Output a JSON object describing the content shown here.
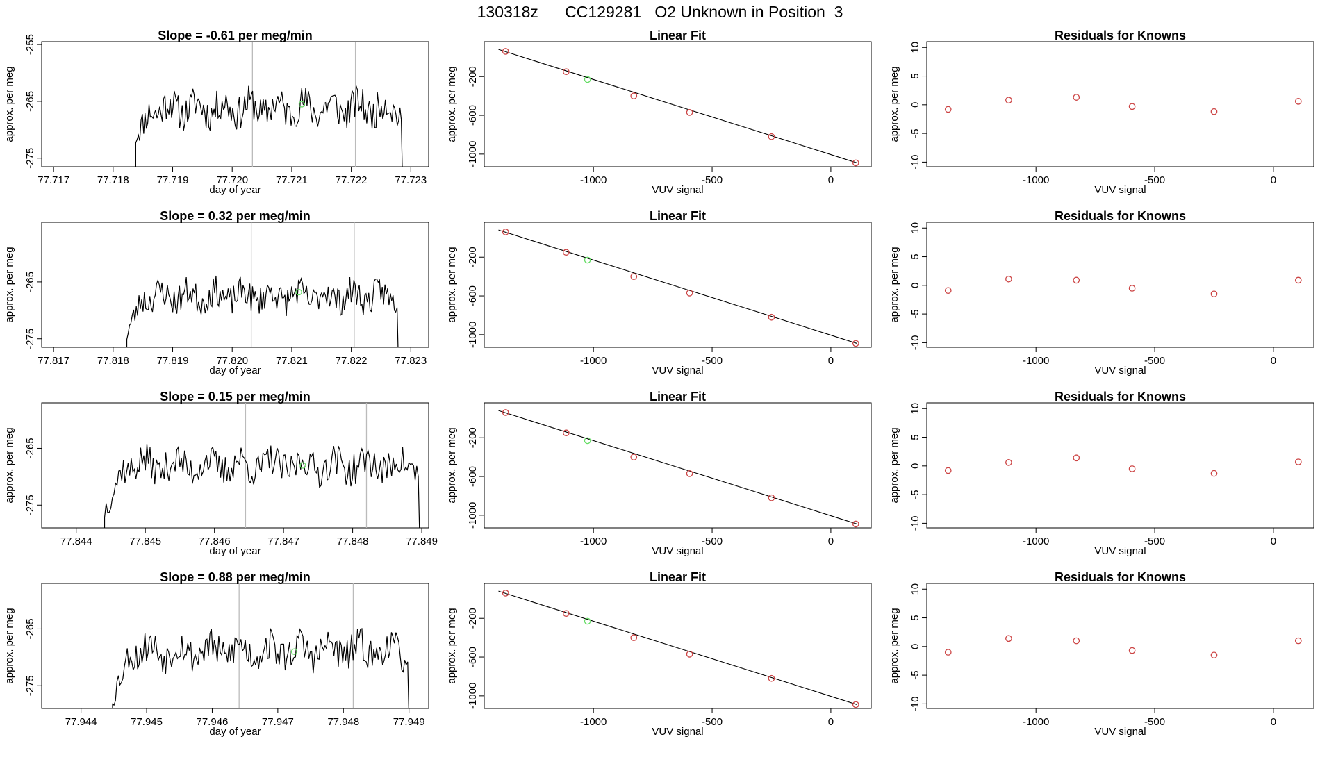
{
  "page": {
    "title": "130318z      CC129281   O2 Unknown in Position  3"
  },
  "chart_data": [
    {
      "type": "line",
      "title": "Slope =  -0.61  per meg/min",
      "xlabel": "day of year",
      "ylabel": "approx. per meg",
      "xlim": [
        77.7168,
        77.7233
      ],
      "ylim": [
        -276.5,
        -254.5
      ],
      "xticks": [
        "77.717",
        "77.718",
        "77.719",
        "77.720",
        "77.721",
        "77.722",
        "77.723"
      ],
      "xtick_values": [
        77.717,
        77.718,
        77.719,
        77.72,
        77.721,
        77.722,
        77.723
      ],
      "yticks": [
        "-255",
        "-265",
        "-275"
      ],
      "ytick_values": [
        -255,
        -265,
        -275
      ],
      "vlines": [
        77.72034,
        77.72207
      ],
      "marker": {
        "x": 77.72117,
        "y": -265.5,
        "color": "#66dd66"
      },
      "trace_start": 77.71838,
      "trace_end": 77.72284,
      "seed": 11,
      "trace_mean": -266.2,
      "trace_amp": 2.3,
      "start_y": -271.0
    },
    {
      "type": "scatter",
      "title": "Linear Fit",
      "xlabel": "VUV signal",
      "ylabel": "approx. per meg",
      "xlim": [
        -1460,
        170
      ],
      "ylim": [
        -1130,
        160
      ],
      "xticks": [
        "-1000",
        "-500",
        "0"
      ],
      "xtick_values": [
        -1000,
        -500,
        0
      ],
      "yticks": [
        "-200",
        "-600",
        "-1000"
      ],
      "ytick_values": [
        -200,
        -600,
        -1000
      ],
      "fit_line": {
        "x": [
          -1400,
          110
        ],
        "y": [
          80,
          -1090
        ]
      },
      "points": {
        "x": [
          -1370,
          -1115,
          -830,
          -595,
          -250,
          105
        ],
        "y": [
          60,
          -150,
          -400,
          -570,
          -820,
          -1090
        ],
        "color": "#cc4444"
      },
      "highlight": {
        "x": [
          -1025
        ],
        "y": [
          -230
        ],
        "color": "#66dd66"
      }
    },
    {
      "type": "scatter",
      "title": "Residuals for Knowns",
      "xlabel": "VUV signal",
      "ylabel": "approx. per meg",
      "xlim": [
        -1460,
        170
      ],
      "ylim": [
        -10.8,
        11
      ],
      "xticks": [
        "-1000",
        "-500",
        "0"
      ],
      "xtick_values": [
        -1000,
        -500,
        0
      ],
      "yticks": [
        "-10",
        "-5",
        "0",
        "5",
        "10"
      ],
      "ytick_values": [
        -10,
        -5,
        0,
        5,
        10
      ],
      "points": {
        "x": [
          -1370,
          -1115,
          -830,
          -595,
          -250,
          105
        ],
        "y": [
          -0.8,
          0.8,
          1.3,
          -0.3,
          -1.2,
          0.6
        ],
        "color": "#cc4444"
      }
    },
    {
      "type": "line",
      "title": "Slope =  0.32  per meg/min",
      "xlabel": "day of year",
      "ylabel": "approx. per meg",
      "xlim": [
        77.8168,
        77.8233
      ],
      "ylim": [
        -276.5,
        -254.5
      ],
      "xticks": [
        "77.817",
        "77.818",
        "77.819",
        "77.820",
        "77.821",
        "77.822",
        "77.823"
      ],
      "xtick_values": [
        77.817,
        77.818,
        77.819,
        77.82,
        77.821,
        77.822,
        77.823
      ],
      "yticks": [
        "-265",
        "-275"
      ],
      "ytick_values": [
        -265,
        -275
      ],
      "vlines": [
        77.82032,
        77.82205
      ],
      "marker": {
        "x": 77.82112,
        "y": -266.8,
        "color": "#66dd66"
      },
      "trace_start": 77.81823,
      "trace_end": 77.82277,
      "seed": 23,
      "trace_mean": -267.5,
      "trace_amp": 2.0,
      "start_y": -274.0
    },
    {
      "type": "scatter",
      "title": "Linear Fit",
      "xlabel": "VUV signal",
      "ylabel": "approx. per meg",
      "xlim": [
        -1460,
        170
      ],
      "ylim": [
        -1130,
        160
      ],
      "xticks": [
        "-1000",
        "-500",
        "0"
      ],
      "xtick_values": [
        -1000,
        -500,
        0
      ],
      "yticks": [
        "-200",
        "-600",
        "-1000"
      ],
      "ytick_values": [
        -200,
        -600,
        -1000
      ],
      "fit_line": {
        "x": [
          -1400,
          110
        ],
        "y": [
          80,
          -1090
        ]
      },
      "points": {
        "x": [
          -1370,
          -1115,
          -830,
          -595,
          -250,
          105
        ],
        "y": [
          60,
          -150,
          -400,
          -570,
          -820,
          -1090
        ],
        "color": "#cc4444"
      },
      "highlight": {
        "x": [
          -1025
        ],
        "y": [
          -230
        ],
        "color": "#66dd66"
      }
    },
    {
      "type": "scatter",
      "title": "Residuals for Knowns",
      "xlabel": "VUV signal",
      "ylabel": "approx. per meg",
      "xlim": [
        -1460,
        170
      ],
      "ylim": [
        -10.8,
        11
      ],
      "xticks": [
        "-1000",
        "-500",
        "0"
      ],
      "xtick_values": [
        -1000,
        -500,
        0
      ],
      "yticks": [
        "-10",
        "-5",
        "0",
        "5",
        "10"
      ],
      "ytick_values": [
        -10,
        -5,
        0,
        5,
        10
      ],
      "points": {
        "x": [
          -1370,
          -1115,
          -830,
          -595,
          -250,
          105
        ],
        "y": [
          -0.9,
          1.1,
          0.9,
          -0.5,
          -1.5,
          0.9
        ],
        "color": "#cc4444"
      }
    },
    {
      "type": "line",
      "title": "Slope =  0.15  per meg/min",
      "xlabel": "day of year",
      "ylabel": "approx. per meg",
      "xlim": [
        77.8435,
        77.8491
      ],
      "ylim": [
        -279.0,
        -257.0
      ],
      "xticks": [
        "77.844",
        "77.845",
        "77.846",
        "77.847",
        "77.848",
        "77.849"
      ],
      "xtick_values": [
        77.844,
        77.845,
        77.846,
        77.847,
        77.848,
        77.849
      ],
      "yticks": [
        "-265",
        "-275"
      ],
      "ytick_values": [
        -265,
        -275
      ],
      "vlines": [
        77.84645,
        77.8482
      ],
      "marker": {
        "x": 77.84728,
        "y": -268.0,
        "color": "#66dd66"
      },
      "trace_start": 77.84441,
      "trace_end": 77.84895,
      "seed": 37,
      "trace_mean": -268.0,
      "trace_amp": 2.2,
      "start_y": -276.0
    },
    {
      "type": "scatter",
      "title": "Linear Fit",
      "xlabel": "VUV signal",
      "ylabel": "approx. per meg",
      "xlim": [
        -1460,
        170
      ],
      "ylim": [
        -1130,
        160
      ],
      "xticks": [
        "-1000",
        "-500",
        "0"
      ],
      "xtick_values": [
        -1000,
        -500,
        0
      ],
      "yticks": [
        "-200",
        "-600",
        "-1000"
      ],
      "ytick_values": [
        -200,
        -600,
        -1000
      ],
      "fit_line": {
        "x": [
          -1400,
          110
        ],
        "y": [
          80,
          -1090
        ]
      },
      "points": {
        "x": [
          -1370,
          -1115,
          -830,
          -595,
          -250,
          105
        ],
        "y": [
          60,
          -150,
          -400,
          -570,
          -820,
          -1090
        ],
        "color": "#cc4444"
      },
      "highlight": {
        "x": [
          -1025
        ],
        "y": [
          -230
        ],
        "color": "#66dd66"
      }
    },
    {
      "type": "scatter",
      "title": "Residuals for Knowns",
      "xlabel": "VUV signal",
      "ylabel": "approx. per meg",
      "xlim": [
        -1460,
        170
      ],
      "ylim": [
        -10.8,
        11
      ],
      "xticks": [
        "-1000",
        "-500",
        "0"
      ],
      "xtick_values": [
        -1000,
        -500,
        0
      ],
      "yticks": [
        "-10",
        "-5",
        "0",
        "5",
        "10"
      ],
      "ytick_values": [
        -10,
        -5,
        0,
        5,
        10
      ],
      "points": {
        "x": [
          -1370,
          -1115,
          -830,
          -595,
          -250,
          105
        ],
        "y": [
          -0.8,
          0.6,
          1.4,
          -0.5,
          -1.3,
          0.7
        ],
        "color": "#cc4444"
      }
    },
    {
      "type": "line",
      "title": "Slope =  0.88  per meg/min",
      "xlabel": "day of year",
      "ylabel": "approx. per meg",
      "xlim": [
        77.9434,
        77.9493
      ],
      "ylim": [
        -279.0,
        -257.0
      ],
      "xticks": [
        "77.944",
        "77.945",
        "77.946",
        "77.947",
        "77.948",
        "77.949"
      ],
      "xtick_values": [
        77.944,
        77.945,
        77.946,
        77.947,
        77.948,
        77.949
      ],
      "yticks": [
        "-265",
        "-275"
      ],
      "ytick_values": [
        -265,
        -275
      ],
      "vlines": [
        77.94641,
        77.94815
      ],
      "marker": {
        "x": 77.94725,
        "y": -269.0,
        "color": "#66dd66"
      },
      "trace_start": 77.94448,
      "trace_end": 77.94898,
      "seed": 53,
      "trace_mean": -268.8,
      "trace_amp": 2.3,
      "start_y": -277.0
    },
    {
      "type": "scatter",
      "title": "Linear Fit",
      "xlabel": "VUV signal",
      "ylabel": "approx. per meg",
      "xlim": [
        -1460,
        170
      ],
      "ylim": [
        -1130,
        160
      ],
      "xticks": [
        "-1000",
        "-500",
        "0"
      ],
      "xtick_values": [
        -1000,
        -500,
        0
      ],
      "yticks": [
        "-200",
        "-600",
        "-1000"
      ],
      "ytick_values": [
        -200,
        -600,
        -1000
      ],
      "fit_line": {
        "x": [
          -1400,
          110
        ],
        "y": [
          80,
          -1090
        ]
      },
      "points": {
        "x": [
          -1370,
          -1115,
          -830,
          -595,
          -250,
          105
        ],
        "y": [
          60,
          -150,
          -400,
          -570,
          -820,
          -1090
        ],
        "color": "#cc4444"
      },
      "highlight": {
        "x": [
          -1025
        ],
        "y": [
          -230
        ],
        "color": "#66dd66"
      }
    },
    {
      "type": "scatter",
      "title": "Residuals for Knowns",
      "xlabel": "VUV signal",
      "ylabel": "approx. per meg",
      "xlim": [
        -1460,
        170
      ],
      "ylim": [
        -10.8,
        11
      ],
      "xticks": [
        "-1000",
        "-500",
        "0"
      ],
      "xtick_values": [
        -1000,
        -500,
        0
      ],
      "yticks": [
        "-10",
        "-5",
        "0",
        "5",
        "10"
      ],
      "ytick_values": [
        -10,
        -5,
        0,
        5,
        10
      ],
      "points": {
        "x": [
          -1370,
          -1115,
          -830,
          -595,
          -250,
          105
        ],
        "y": [
          -1.0,
          1.4,
          1.0,
          -0.7,
          -1.5,
          1.0
        ],
        "color": "#cc4444"
      }
    }
  ]
}
